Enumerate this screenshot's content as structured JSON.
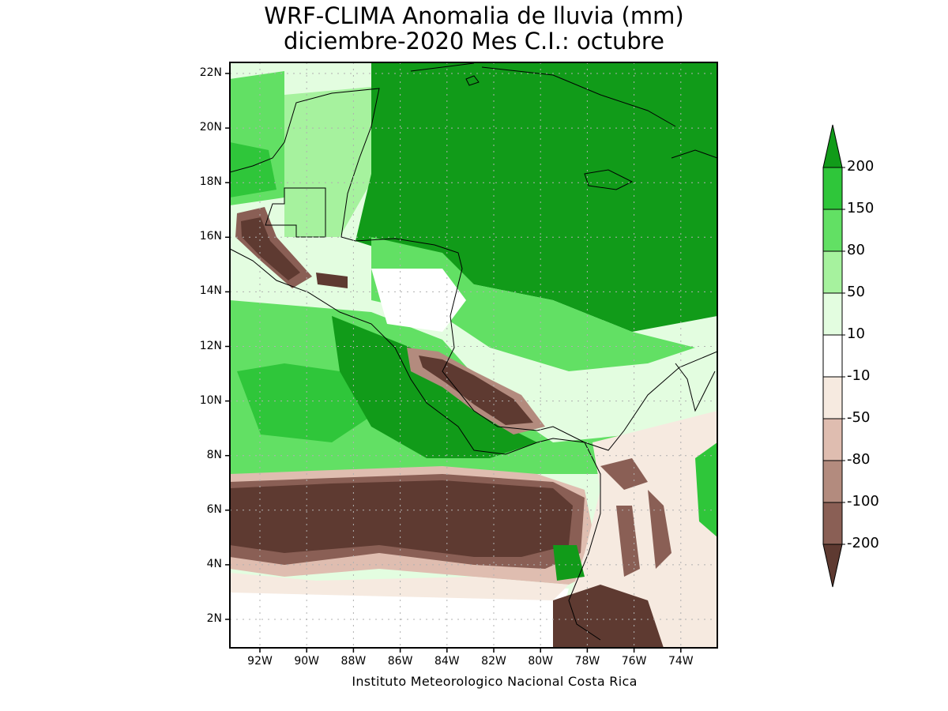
{
  "title_line1": "WRF-CLIMA Anomalia de lluvia (mm)",
  "title_line2": "diciembre-2020 Mes C.I.: octubre",
  "credit": "Instituto Meteorologico Nacional Costa Rica",
  "lat_ticks": [
    "22N",
    "20N",
    "18N",
    "16N",
    "14N",
    "12N",
    "10N",
    "8N",
    "6N",
    "4N",
    "2N"
  ],
  "lon_ticks": [
    "92W",
    "90W",
    "88W",
    "86W",
    "84W",
    "82W",
    "80W",
    "78W",
    "76W",
    "74W"
  ],
  "legend": {
    "units": "mm",
    "levels": [
      {
        "label": "200",
        "color": "#119b19"
      },
      {
        "label": "150",
        "color": "#2fc63a"
      },
      {
        "label": "80",
        "color": "#62e064"
      },
      {
        "label": "50",
        "color": "#a6f29e"
      },
      {
        "label": "10",
        "color": "#e3fde0"
      },
      {
        "label": "-10",
        "color": "#ffffff"
      },
      {
        "label": "-50",
        "color": "#f6eae0"
      },
      {
        "label": "-80",
        "color": "#dfbdb0"
      },
      {
        "label": "-100",
        "color": "#b38b7e"
      },
      {
        "label": "-200",
        "color": "#8a5f55"
      }
    ],
    "extreme_low_color": "#5e3a31",
    "extreme_high_color": "#119b19"
  }
}
